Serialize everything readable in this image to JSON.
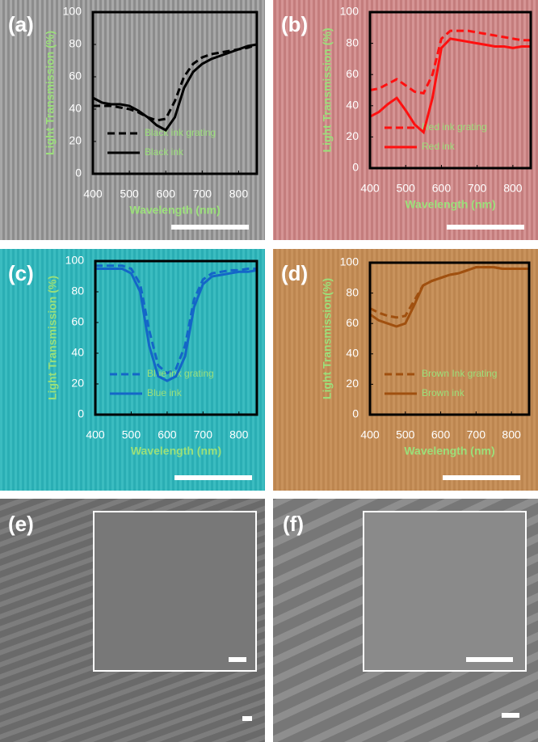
{
  "chart_data": [
    {
      "type": "line",
      "panel": "(a)",
      "xlabel": "Wavelength (nm)",
      "ylabel": "Light Transmission (%)",
      "x": [
        400,
        425,
        450,
        475,
        500,
        525,
        550,
        575,
        600,
        625,
        650,
        675,
        700,
        725,
        750,
        775,
        800,
        825,
        850
      ],
      "xlim": [
        400,
        850
      ],
      "xticks": [
        400,
        500,
        600,
        700,
        800
      ],
      "ylim": [
        0,
        100
      ],
      "yticks": [
        0,
        20,
        40,
        60,
        80,
        100
      ],
      "legend": "lower left",
      "series": [
        {
          "name": "Black ink grating",
          "color": "#000000",
          "dash": true,
          "values": [
            42,
            42,
            42,
            41,
            40,
            38,
            35,
            33,
            34,
            45,
            60,
            68,
            72,
            74,
            75,
            76,
            77,
            78,
            80
          ]
        },
        {
          "name": "Black ink",
          "color": "#000000",
          "dash": false,
          "values": [
            47,
            44,
            43,
            43,
            42,
            39,
            35,
            30,
            27,
            35,
            53,
            63,
            68,
            71,
            73,
            75,
            77,
            79,
            80
          ]
        }
      ]
    },
    {
      "type": "line",
      "panel": "(b)",
      "xlabel": "Wavelength (nm)",
      "ylabel": "Light Transmission (%)",
      "x": [
        400,
        425,
        450,
        475,
        500,
        525,
        550,
        575,
        600,
        625,
        650,
        675,
        700,
        725,
        750,
        775,
        800,
        825,
        850
      ],
      "xlim": [
        400,
        850
      ],
      "xticks": [
        400,
        500,
        600,
        700,
        800
      ],
      "ylim": [
        0,
        100
      ],
      "yticks": [
        0,
        20,
        40,
        60,
        80,
        100
      ],
      "legend": "lower left",
      "series": [
        {
          "name": "Red ink grating",
          "color": "#ff1010",
          "dash": true,
          "values": [
            50,
            51,
            54,
            57,
            53,
            49,
            48,
            60,
            83,
            88,
            88,
            88,
            87,
            86,
            85,
            84,
            83,
            82,
            82
          ]
        },
        {
          "name": "Red ink",
          "color": "#ff1010",
          "dash": false,
          "values": [
            33,
            36,
            41,
            45,
            37,
            28,
            23,
            45,
            77,
            83,
            82,
            81,
            80,
            79,
            78,
            78,
            77,
            78,
            78
          ]
        }
      ]
    },
    {
      "type": "line",
      "panel": "(c)",
      "xlabel": "Wavelength (nm)",
      "ylabel": "Light Transmission (%)",
      "x": [
        400,
        425,
        450,
        475,
        500,
        525,
        550,
        575,
        600,
        625,
        650,
        675,
        700,
        725,
        750,
        775,
        800,
        825,
        850
      ],
      "xlim": [
        400,
        850
      ],
      "xticks": [
        400,
        500,
        600,
        700,
        800
      ],
      "ylim": [
        0,
        100
      ],
      "yticks": [
        0,
        20,
        40,
        60,
        80,
        100
      ],
      "legend": "lower left",
      "series": [
        {
          "name": "Blue ink grating",
          "color": "#1466c8",
          "dash": true,
          "values": [
            97,
            97,
            97,
            97,
            95,
            85,
            55,
            32,
            27,
            30,
            45,
            75,
            88,
            92,
            93,
            94,
            94,
            95,
            95
          ]
        },
        {
          "name": "Blue ink",
          "color": "#1466c8",
          "dash": false,
          "values": [
            95,
            95,
            95,
            95,
            92,
            80,
            45,
            25,
            22,
            25,
            38,
            70,
            85,
            90,
            91,
            92,
            93,
            93,
            94
          ]
        }
      ]
    },
    {
      "type": "line",
      "panel": "(d)",
      "xlabel": "Wavelength (nm)",
      "ylabel": "Light  Transmission(%)",
      "x": [
        400,
        425,
        450,
        475,
        500,
        525,
        550,
        575,
        600,
        625,
        650,
        675,
        700,
        725,
        750,
        775,
        800,
        825,
        850
      ],
      "xlim": [
        400,
        850
      ],
      "xticks": [
        400,
        500,
        600,
        700,
        800
      ],
      "ylim": [
        0,
        100
      ],
      "yticks": [
        0,
        20,
        40,
        60,
        80,
        100
      ],
      "legend": "lower left",
      "series": [
        {
          "name": "Brown Ink grating",
          "color": "#a0500f",
          "dash": true,
          "values": [
            70,
            67,
            65,
            64,
            65,
            75,
            85,
            88,
            90,
            92,
            93,
            95,
            97,
            97,
            97,
            96,
            96,
            96,
            96
          ]
        },
        {
          "name": "Brown ink",
          "color": "#a0500f",
          "dash": false,
          "values": [
            66,
            62,
            60,
            58,
            60,
            72,
            85,
            88,
            90,
            92,
            93,
            95,
            97,
            97,
            97,
            96,
            96,
            96,
            96
          ]
        }
      ]
    }
  ],
  "images": [
    {
      "label": "(e)"
    },
    {
      "label": "(f)"
    }
  ]
}
